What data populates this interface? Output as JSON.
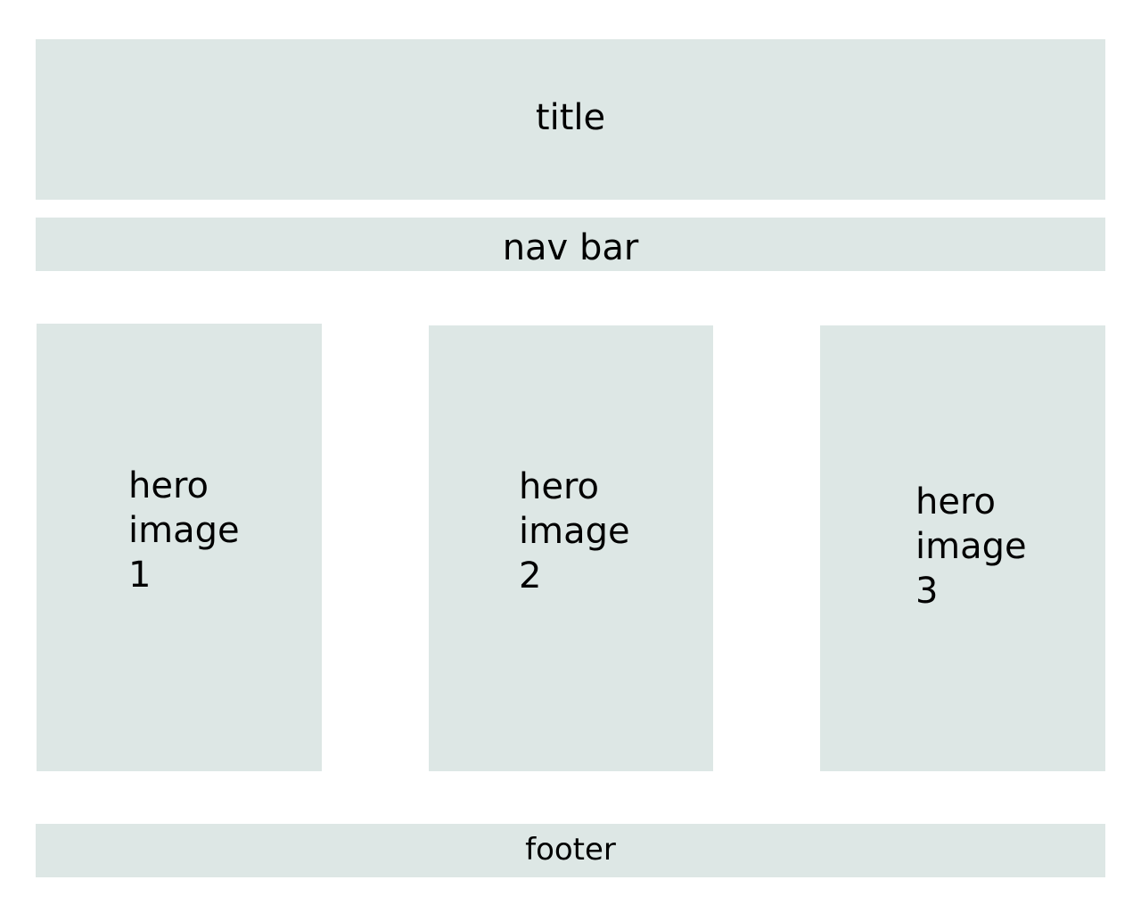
{
  "header": {
    "title": "title"
  },
  "nav": {
    "label": "nav bar"
  },
  "heroes": [
    {
      "line1": "hero",
      "line2": "image",
      "line3": "1"
    },
    {
      "line1": "hero",
      "line2": "image",
      "line3": "2"
    },
    {
      "line1": "hero",
      "line2": "image",
      "line3": "3"
    }
  ],
  "footer": {
    "label": "footer"
  },
  "colors": {
    "block_fill": "#dde7e5",
    "background": "#ffffff"
  }
}
